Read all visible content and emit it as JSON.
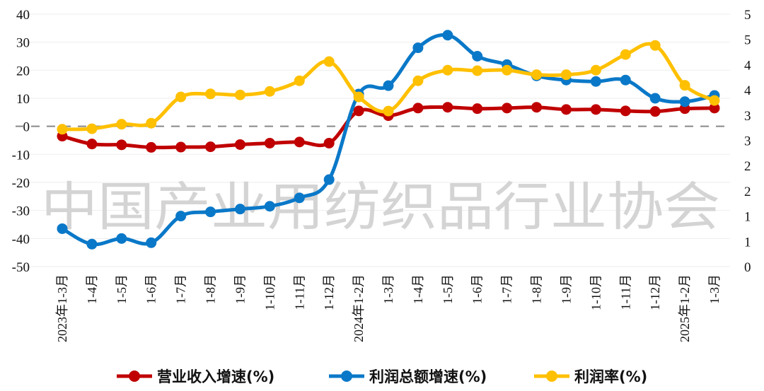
{
  "watermark": "中国产业用纺织品行业协会",
  "chart_data": {
    "type": "line",
    "title": "",
    "categories": [
      "2023年1-3月",
      "1-4月",
      "1-5月",
      "1-6月",
      "1-7月",
      "1-8月",
      "1-9月",
      "1-10月",
      "1-11月",
      "1-12月",
      "2024年1-2月",
      "1-3月",
      "1-4月",
      "1-5月",
      "1-6月",
      "1-7月",
      "1-8月",
      "1-9月",
      "1-10月",
      "1-11月",
      "1-12月",
      "2025年1-2月",
      "1-3月"
    ],
    "left_axis": {
      "ylim": [
        -50,
        40
      ],
      "ticks": [
        "40",
        "30",
        "20",
        "10",
        "0",
        "-10",
        "-20",
        "-30",
        "-40",
        "-50"
      ],
      "tick_values": [
        40,
        30,
        20,
        10,
        0,
        -10,
        -20,
        -30,
        -40,
        -50
      ]
    },
    "right_axis": {
      "ylim": [
        0,
        5
      ],
      "ticks": [
        "5",
        "5",
        "4",
        "4",
        "3",
        "3",
        "2",
        "2",
        "1",
        "1",
        "0"
      ],
      "tick_values": [
        5,
        4.5,
        4,
        3.5,
        3,
        2.5,
        2,
        1.5,
        1,
        0.5,
        0
      ]
    },
    "series": [
      {
        "name": "营业收入增速(%)",
        "axis": "left",
        "color": "#C00000",
        "values": [
          -3.5,
          -6.3,
          -6.6,
          -7.5,
          -7.4,
          -7.3,
          -6.5,
          -6.0,
          -5.6,
          -6.0,
          5.5,
          3.8,
          6.5,
          6.8,
          6.3,
          6.5,
          6.8,
          6.0,
          6.0,
          5.5,
          5.3,
          6.3,
          6.5
        ]
      },
      {
        "name": "利润总额增速(%)",
        "axis": "left",
        "color": "#0A78C8",
        "values": [
          -36.5,
          -42,
          -40,
          -41.5,
          -32,
          -30.5,
          -29.5,
          -28.5,
          -25.5,
          -19,
          11.5,
          14.5,
          28,
          32.5,
          25,
          22,
          18,
          16.5,
          16,
          16.5,
          10,
          8.8,
          11
        ]
      },
      {
        "name": "利润率(%)",
        "axis": "right",
        "color": "#FFC000",
        "values": [
          2.72,
          2.73,
          2.82,
          2.84,
          3.36,
          3.42,
          3.4,
          3.47,
          3.68,
          4.06,
          3.36,
          3.08,
          3.68,
          3.89,
          3.88,
          3.89,
          3.8,
          3.8,
          3.89,
          4.2,
          4.38,
          3.59,
          3.29
        ]
      }
    ],
    "zero_line": "dashed",
    "grid": true,
    "legend_position": "bottom"
  }
}
